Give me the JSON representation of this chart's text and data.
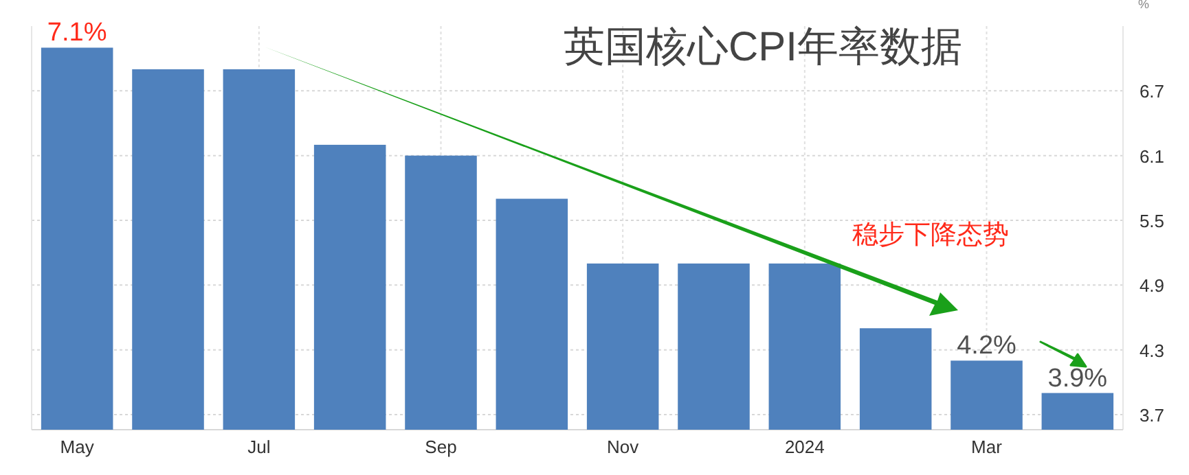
{
  "chart_data": {
    "type": "bar",
    "title": "英国核心CPI年率数据",
    "ylabel": "%",
    "categories": [
      "May",
      null,
      "Jul",
      null,
      "Sep",
      null,
      "Nov",
      null,
      "2024",
      null,
      "Mar",
      null
    ],
    "values": [
      7.1,
      6.9,
      6.9,
      6.2,
      6.1,
      5.7,
      5.1,
      5.1,
      5.1,
      4.5,
      4.2,
      3.9
    ],
    "value_labels": [
      "7.1%",
      null,
      null,
      null,
      null,
      null,
      null,
      null,
      null,
      null,
      "4.2%",
      "3.9%"
    ],
    "color": "#4f81bd",
    "ylim": [
      3.56,
      7.3
    ],
    "yticks": [
      3.7,
      4.3,
      4.9,
      5.5,
      6.1,
      6.7
    ],
    "grid": true,
    "annotations": [
      "稳步下降态势"
    ]
  }
}
